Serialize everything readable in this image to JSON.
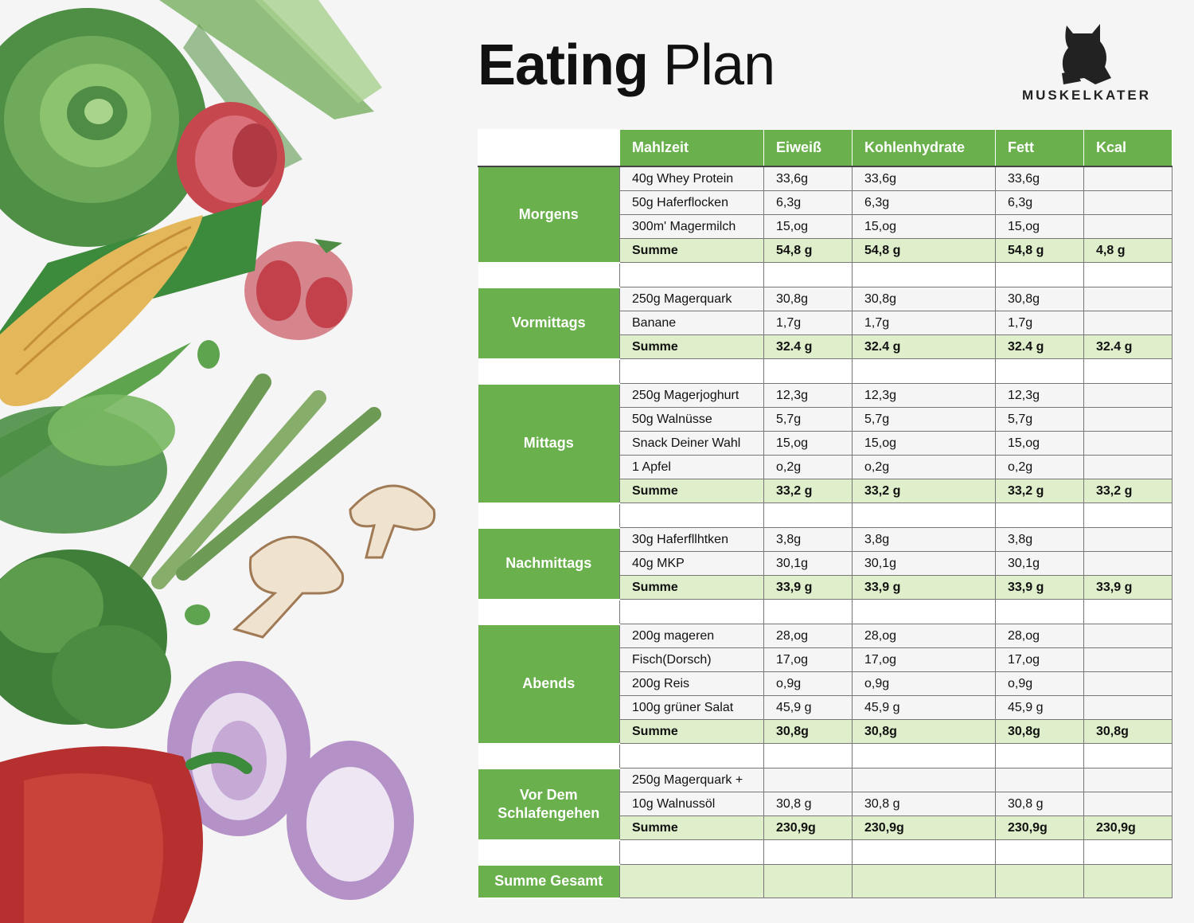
{
  "title_bold": "Eating",
  "title_light": "Plan",
  "brand": "MUSKELKATER",
  "headers": [
    "Mahlzeit",
    "Eiweiß",
    "Kohlenhydrate",
    "Fett",
    "Kcal"
  ],
  "sections": [
    {
      "meal": "Morgens",
      "rows": [
        [
          "40g Whey Protein",
          "33,6g",
          "33,6g",
          "33,6g",
          ""
        ],
        [
          "50g Haferflocken",
          "6,3g",
          "6,3g",
          "6,3g",
          ""
        ],
        [
          "300m' Magermilch",
          "15,og",
          "15,og",
          "15,og",
          ""
        ]
      ],
      "sum": [
        "Summe",
        "54,8 g",
        "54,8 g",
        "54,8 g",
        "4,8 g"
      ]
    },
    {
      "meal": "Vormittags",
      "rows": [
        [
          "250g Magerquark",
          "30,8g",
          "30,8g",
          "30,8g",
          ""
        ],
        [
          "Banane",
          "1,7g",
          "1,7g",
          "1,7g",
          ""
        ]
      ],
      "sum": [
        "Summe",
        "32.4 g",
        "32.4 g",
        "32.4 g",
        "32.4 g"
      ]
    },
    {
      "meal": "Mittags",
      "rows": [
        [
          "250g Magerjoghurt",
          "12,3g",
          "12,3g",
          "12,3g",
          ""
        ],
        [
          "50g Walnüsse",
          "5,7g",
          "5,7g",
          "5,7g",
          ""
        ],
        [
          "Snack Deiner Wahl",
          "15,og",
          "15,og",
          "15,og",
          ""
        ],
        [
          "1 Apfel",
          "o,2g",
          "o,2g",
          "o,2g",
          ""
        ]
      ],
      "sum": [
        "Summe",
        "33,2 g",
        "33,2 g",
        "33,2 g",
        "33,2 g"
      ]
    },
    {
      "meal": "Nachmittags",
      "rows": [
        [
          "30g Haferfllhtken",
          "3,8g",
          "3,8g",
          "3,8g",
          ""
        ],
        [
          "40g MKP",
          "30,1g",
          "30,1g",
          "30,1g",
          ""
        ]
      ],
      "sum": [
        "Summe",
        "33,9 g",
        "33,9 g",
        "33,9 g",
        "33,9 g"
      ]
    },
    {
      "meal": "Abends",
      "rows": [
        [
          "200g mageren",
          "28,og",
          "28,og",
          "28,og",
          ""
        ],
        [
          "Fisch(Dorsch)",
          "17,og",
          "17,og",
          "17,og",
          ""
        ],
        [
          "200g Reis",
          "o,9g",
          "o,9g",
          "o,9g",
          ""
        ],
        [
          "100g grüner Salat",
          "45,9 g",
          "45,9 g",
          "45,9 g",
          ""
        ]
      ],
      "sum": [
        "Summe",
        "30,8g",
        "30,8g",
        "30,8g",
        "30,8g"
      ]
    },
    {
      "meal": "Vor Dem Schlafengehen",
      "rows": [
        [
          "250g Magerquark +",
          "",
          "",
          "",
          ""
        ],
        [
          "10g Walnussöl",
          "30,8 g",
          "30,8 g",
          "30,8 g",
          ""
        ]
      ],
      "sum": [
        "Summe",
        "230,9g",
        "230,9g",
        "230,9g",
        "230,9g"
      ]
    }
  ],
  "total_label": "Summe Gesamt",
  "colors": {
    "green": "#6ab04c",
    "light_green": "#dfeecb"
  },
  "decorative_illustration": [
    "lettuce-icon",
    "tomato-icon",
    "corn-icon",
    "asparagus-icon",
    "mushroom-icon",
    "broccoli-icon",
    "onion-icon",
    "bell-pepper-icon"
  ]
}
